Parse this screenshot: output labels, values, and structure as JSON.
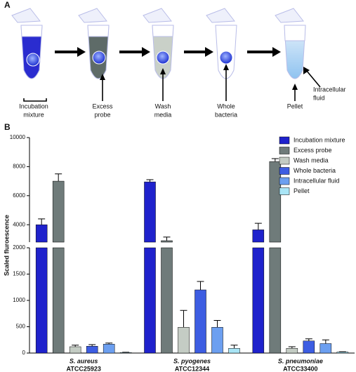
{
  "diagram": {
    "panel_label": "A",
    "steps": [
      {
        "label": [
          "Incubation",
          "mixture"
        ]
      },
      {
        "label": [
          "Excess",
          "probe"
        ]
      },
      {
        "label": [
          "Wash",
          "media"
        ]
      },
      {
        "label": [
          "Whole",
          "bacteria"
        ]
      },
      {
        "label": [
          "Pellet"
        ]
      }
    ],
    "side_label": [
      "Intracellular",
      "fluid"
    ]
  },
  "chart_data": {
    "type": "bar",
    "panel_label": "B",
    "y_label": "Scaled fluroescence",
    "categories": [
      "S. aureus",
      "S. pyogenes",
      "S. pneumoniae"
    ],
    "category_strains": [
      "ATCC25923",
      "ATCC12344",
      "ATCC33400"
    ],
    "series": [
      {
        "name": "Incubation mixture",
        "color": "#1f22cc",
        "values": [
          4000,
          6950,
          3650
        ],
        "errors": [
          400,
          150,
          450
        ]
      },
      {
        "name": "Excess probe",
        "color": "#6f7b7a",
        "values": [
          7000,
          2900,
          8350
        ],
        "errors": [
          500,
          250,
          200
        ]
      },
      {
        "name": "Wash media",
        "color": "#c4ccc4",
        "values": [
          120,
          490,
          90
        ],
        "errors": [
          30,
          320,
          30
        ]
      },
      {
        "name": "Whole bacteria",
        "color": "#3d5de2",
        "values": [
          130,
          1200,
          230
        ],
        "errors": [
          30,
          160,
          40
        ]
      },
      {
        "name": "Intracellular fluid",
        "color": "#6c9ff0",
        "values": [
          170,
          490,
          180
        ],
        "errors": [
          20,
          130,
          70
        ]
      },
      {
        "name": "Pellet",
        "color": "#a9e5f6",
        "values": [
          10,
          90,
          20
        ],
        "errors": [
          5,
          60,
          5
        ]
      }
    ],
    "ylim": [
      0,
      2000
    ],
    "yticks": [
      0,
      500,
      1000,
      1500,
      2000
    ],
    "upper_ylim": [
      2800,
      10000
    ],
    "upper_yticks": [
      4000,
      6000,
      8000,
      10000
    ],
    "legend": "top-right"
  }
}
